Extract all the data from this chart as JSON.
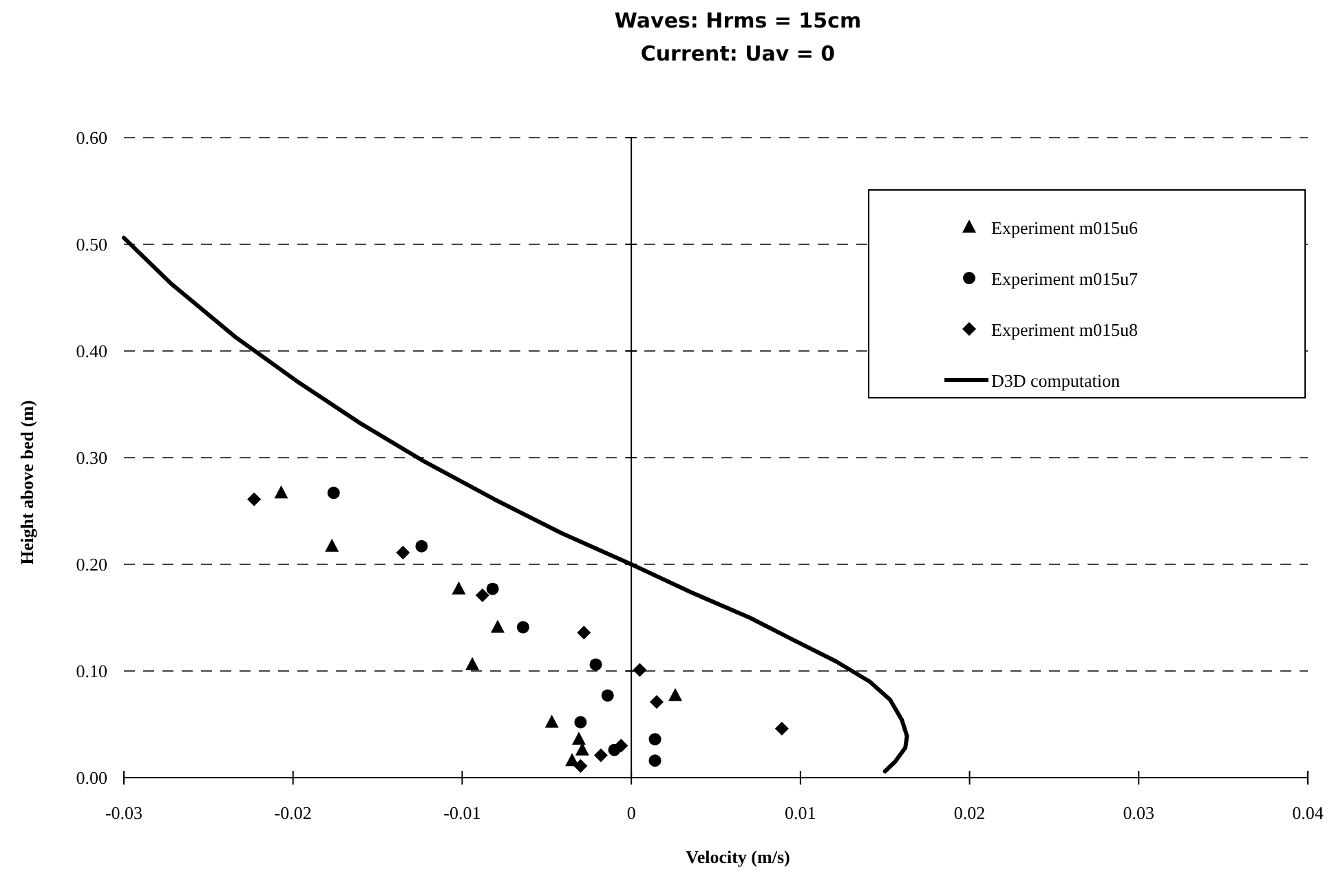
{
  "chart_data": {
    "type": "scatter",
    "title": "Waves: Hrms = 15cm",
    "subtitle": "Current: Uav = 0",
    "xlabel": "Velocity (m/s)",
    "ylabel": "Height above bed (m)",
    "xlim": [
      -0.03,
      0.04
    ],
    "xticks": [
      {
        "value": -0.03,
        "label": "-0.03"
      },
      {
        "value": -0.02,
        "label": "-0.02"
      },
      {
        "value": -0.01,
        "label": "-0.01"
      },
      0,
      0.01,
      0.02,
      0.03,
      0.04
    ],
    "ylim": [
      0,
      0.6
    ],
    "yticks": [
      {
        "value": 0,
        "label": "0.00"
      },
      {
        "value": 0.1,
        "label": "0.10"
      },
      {
        "value": 0.2,
        "label": "0.20"
      },
      {
        "value": 0.3,
        "label": "0.30"
      },
      {
        "value": 0.4,
        "label": "0.40"
      },
      {
        "value": 0.5,
        "label": "0.50"
      },
      {
        "value": 0.6,
        "label": "0.60"
      }
    ],
    "grid": "y",
    "legend": "top right",
    "series": [
      {
        "name": "Experiment m015u6",
        "marker": "triangle",
        "color": "#000000",
        "x": [
          -0.0207,
          -0.0177,
          -0.0102,
          -0.0079,
          -0.0094,
          -0.0047,
          -0.0031,
          -0.0029,
          -0.0035,
          0.0026
        ],
        "values": [
          0.267,
          0.217,
          0.177,
          0.141,
          0.106,
          0.052,
          0.036,
          0.026,
          0.016,
          0.077
        ]
      },
      {
        "name": "Experiment m015u7",
        "marker": "circle",
        "color": "#000000",
        "x": [
          -0.0176,
          -0.0124,
          -0.0082,
          -0.0064,
          -0.0021,
          -0.0014,
          -0.003,
          -0.001,
          0.0014,
          0.0014
        ],
        "values": [
          0.267,
          0.217,
          0.177,
          0.141,
          0.106,
          0.077,
          0.052,
          0.026,
          0.036,
          0.016
        ]
      },
      {
        "name": "Experiment m015u8",
        "marker": "diamond",
        "color": "#000000",
        "x": [
          -0.0223,
          -0.0135,
          -0.0088,
          -0.0028,
          0.0005,
          0.0015,
          0.0089,
          -0.0006,
          -0.0018,
          -0.003
        ],
        "values": [
          0.261,
          0.211,
          0.171,
          0.136,
          0.101,
          0.071,
          0.046,
          0.03,
          0.021,
          0.011
        ]
      },
      {
        "name": "D3D computation",
        "type": "line",
        "marker": "none",
        "line_style": "solid",
        "color": "#000000",
        "x": [
          -0.03,
          -0.0272,
          -0.0234,
          -0.0198,
          -0.0161,
          -0.0122,
          -0.0081,
          -0.0041,
          0,
          0.0035,
          0.007,
          0.0096,
          0.0121,
          0.0141,
          0.0153,
          0.016,
          0.0163,
          0.0162,
          0.0156,
          0.015
        ],
        "values": [
          0.506,
          0.463,
          0.413,
          0.372,
          0.333,
          0.296,
          0.261,
          0.229,
          0.2,
          0.174,
          0.15,
          0.129,
          0.109,
          0.09,
          0.073,
          0.054,
          0.039,
          0.028,
          0.015,
          0.006
        ]
      }
    ]
  }
}
